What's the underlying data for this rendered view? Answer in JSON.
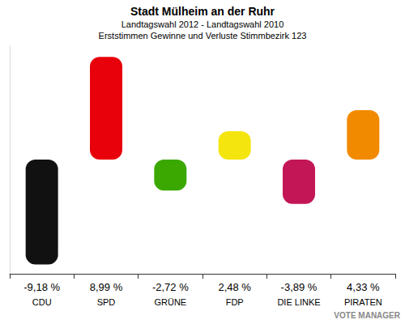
{
  "chart_data": {
    "type": "bar",
    "title": "Stadt Mülheim an der Ruhr",
    "subtitle": "Landtagswahl 2012 - Landtagswahl 2010\nErststimmen Gewinne und Verluste Stimmbezirk 123",
    "categories": [
      "CDU",
      "SPD",
      "GRÜNE",
      "FDP",
      "DIE LINKE",
      "PIRATEN"
    ],
    "values": [
      -9.18,
      8.99,
      -2.72,
      2.48,
      -3.89,
      4.33
    ],
    "value_labels": [
      "-9,18 %",
      "8,99 %",
      "-2,72 %",
      "2,48 %",
      "-3,89 %",
      "4,33 %"
    ],
    "colors": [
      "#111111",
      "#e8000b",
      "#3aa800",
      "#f5e50f",
      "#c21657",
      "#f28a00"
    ],
    "ylim": [
      -10,
      10
    ],
    "grid": false,
    "data_labels": true,
    "tick_labels": "x"
  },
  "logo": "VOTE MANAGER"
}
